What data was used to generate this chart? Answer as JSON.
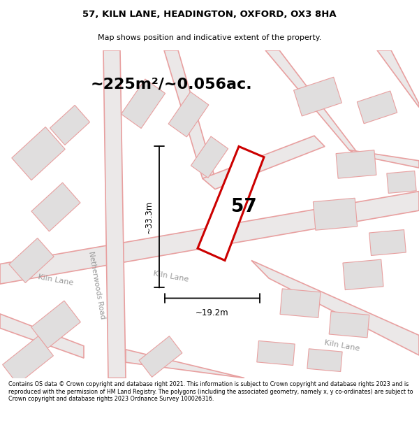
{
  "title": "57, KILN LANE, HEADINGTON, OXFORD, OX3 8HA",
  "subtitle": "Map shows position and indicative extent of the property.",
  "area_text": "~225m²/~0.056ac.",
  "number_label": "57",
  "dim_vertical": "~33.3m",
  "dim_horizontal": "~19.2m",
  "footer": "Contains OS data © Crown copyright and database right 2021. This information is subject to Crown copyright and database rights 2023 and is reproduced with the permission of HM Land Registry. The polygons (including the associated geometry, namely x, y co-ordinates) are subject to Crown copyright and database rights 2023 Ordnance Survey 100026316.",
  "map_bg": "#f2f0f0",
  "road_line_color": "#e8a0a0",
  "block_face_color": "#e0dede",
  "block_edge_color": "#d0cccc",
  "property_color": "#cc0000",
  "label_color_road": "#999999",
  "label_road_kiln1": "Kiln Lane",
  "label_road_kiln2": "Kiln Lane",
  "label_road_nether": "Netherwoods Road",
  "road_lw": 1.2,
  "road_lw_main": 1.5
}
